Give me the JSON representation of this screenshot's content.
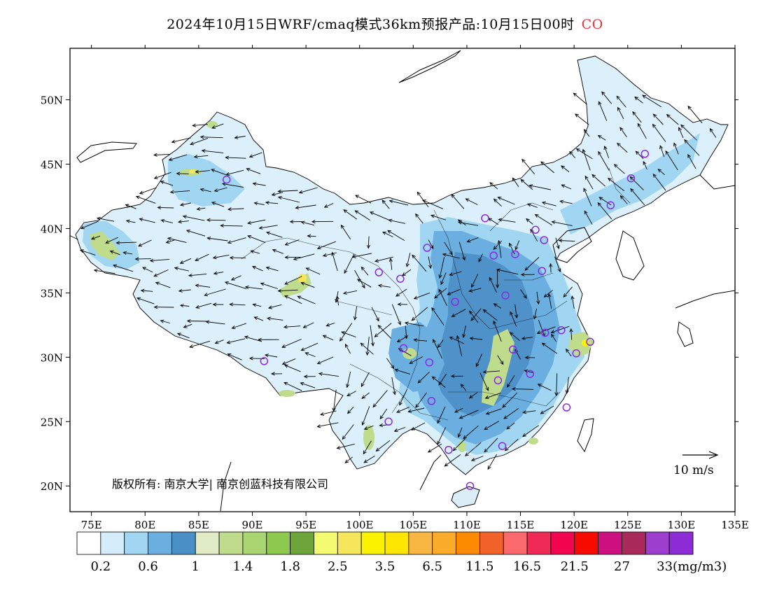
{
  "header": {
    "title": "2024年10月15日WRF/cmaq模式36km预报产品:10月15日00时",
    "species": "CO"
  },
  "map": {
    "x_ticks": [
      "75E",
      "80E",
      "85E",
      "90E",
      "95E",
      "100E",
      "105E",
      "110E",
      "115E",
      "120E",
      "125E",
      "130E",
      "135E"
    ],
    "y_ticks": [
      "50N",
      "45N",
      "40N",
      "35N",
      "30N",
      "25N",
      "20N"
    ],
    "lon_range": [
      73,
      135
    ],
    "lat_range": [
      18,
      54
    ],
    "copyright": "版权所有: 南京大学| 南京创蓝科技有限公司",
    "wind_reference": "10 m/s",
    "stations": [
      [
        87.6,
        43.8
      ],
      [
        91.1,
        29.7
      ],
      [
        101.8,
        36.6
      ],
      [
        103.8,
        36.1
      ],
      [
        106.3,
        38.5
      ],
      [
        104.1,
        30.7
      ],
      [
        106.5,
        29.6
      ],
      [
        106.7,
        26.6
      ],
      [
        102.7,
        25.0
      ],
      [
        108.3,
        22.8
      ],
      [
        110.3,
        20.0
      ],
      [
        111.7,
        40.8
      ],
      [
        112.5,
        37.9
      ],
      [
        114.5,
        38.0
      ],
      [
        116.4,
        39.9
      ],
      [
        117.2,
        39.1
      ],
      [
        117.0,
        36.7
      ],
      [
        113.6,
        34.8
      ],
      [
        114.3,
        30.6
      ],
      [
        112.9,
        28.2
      ],
      [
        115.9,
        28.7
      ],
      [
        117.3,
        31.9
      ],
      [
        118.8,
        32.1
      ],
      [
        120.2,
        30.3
      ],
      [
        121.5,
        31.2
      ],
      [
        119.3,
        26.1
      ],
      [
        113.3,
        23.1
      ],
      [
        108.9,
        34.3
      ],
      [
        123.4,
        41.8
      ],
      [
        125.3,
        43.9
      ],
      [
        126.6,
        45.8
      ]
    ]
  },
  "legend": {
    "colors": [
      "#ffffff",
      "#d5edfa",
      "#a1d6f3",
      "#6aafdf",
      "#4b8fc7",
      "#dfecc6",
      "#bfdb8c",
      "#a9d671",
      "#8dc94f",
      "#6ea53a",
      "#f3fb70",
      "#f6e65c",
      "#fbf200",
      "#fce600",
      "#f7b542",
      "#fbab2a",
      "#fd8b00",
      "#f0622a",
      "#fd6a6e",
      "#ef2a57",
      "#f1054e",
      "#f90a00",
      "#cd1181",
      "#a92a5b",
      "#9d3ecf",
      "#8d2cd6"
    ],
    "labels": [
      "0.2",
      "0.6",
      "1",
      "1.4",
      "1.8",
      "2.5",
      "3.5",
      "6.5",
      "11.5",
      "16.5",
      "21.5",
      "27",
      "33(mg/m3)"
    ]
  }
}
